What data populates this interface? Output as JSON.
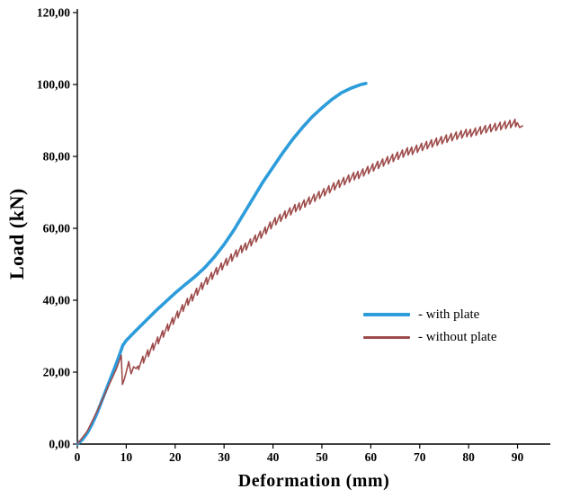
{
  "chart_data": {
    "type": "line",
    "title": "",
    "xlabel": "Deformation (mm)",
    "ylabel": "Load (kN)",
    "xlim": [
      0,
      96.7
    ],
    "ylim": [
      0,
      120
    ],
    "grid": false,
    "legend_position": "inside-right",
    "x_ticks": [
      0,
      10,
      20,
      30,
      40,
      50,
      60,
      70,
      80,
      90
    ],
    "x_tick_labels": [
      "0",
      "10",
      "20",
      "30",
      "40",
      "50",
      "60",
      "70",
      "80",
      "90"
    ],
    "y_ticks": [
      0,
      20,
      40,
      60,
      80,
      100,
      120
    ],
    "y_tick_labels": [
      "0,00",
      "20,00",
      "40,00",
      "60,00",
      "80,00",
      "100,00",
      "120,00"
    ],
    "axis_color": "#000000",
    "series": [
      {
        "name": "with plate",
        "legend_label": "- with plate",
        "color": "#2D9CDB",
        "width": 3.6,
        "jagged": false,
        "x": [
          0,
          1,
          2,
          3,
          4,
          5,
          6,
          7,
          8,
          8.8,
          9.3,
          10,
          11,
          12,
          14,
          16,
          18,
          20,
          22,
          24,
          26,
          28,
          30,
          32,
          34,
          36,
          38,
          40,
          42,
          44,
          46,
          48,
          50,
          52,
          54,
          56,
          58,
          59
        ],
        "y": [
          0,
          1.2,
          3,
          5.5,
          8.5,
          12,
          15.5,
          19,
          22.5,
          25.5,
          27.5,
          28.8,
          30.2,
          31.6,
          34.3,
          37,
          39.5,
          42,
          44.3,
          46.5,
          49,
          52,
          55.5,
          59.5,
          64,
          68.5,
          73,
          77,
          81,
          84.7,
          88,
          91,
          93.5,
          95.8,
          97.7,
          99,
          100,
          100.3
        ]
      },
      {
        "name": "without plate",
        "legend_label": "- without plate",
        "color": "#9E4B4B",
        "width": 1.6,
        "jagged": true,
        "jag_amplitude": 1.2,
        "jag_period": 1.0,
        "jag_start_x": 12.5,
        "jag_end_x": 89.8,
        "x": [
          0,
          2,
          4,
          6,
          8,
          8.8,
          9.0,
          9.2,
          9.6,
          10,
          10.5,
          11,
          11.5,
          12,
          14,
          16,
          18,
          20,
          22,
          24,
          26,
          28,
          30,
          32,
          34,
          36,
          38,
          40,
          42,
          44,
          46,
          48,
          50,
          53,
          56,
          59,
          62,
          65,
          68,
          71,
          74,
          77,
          80,
          83,
          86,
          88,
          90,
          90.4,
          91
        ],
        "y": [
          0,
          3.5,
          9,
          15,
          21,
          24,
          24.8,
          16.5,
          18,
          20,
          23,
          19.5,
          21.5,
          21,
          24.5,
          28,
          31.5,
          35,
          38.5,
          41.8,
          44.8,
          47.5,
          50,
          52.3,
          54.6,
          56.8,
          58.8,
          61.5,
          63.3,
          65,
          66.7,
          68.2,
          69.7,
          72,
          74,
          76,
          78,
          79.8,
          81.5,
          83,
          84.3,
          85.5,
          86.5,
          87.5,
          88.3,
          88.8,
          89.3,
          88,
          88.5
        ]
      }
    ]
  }
}
